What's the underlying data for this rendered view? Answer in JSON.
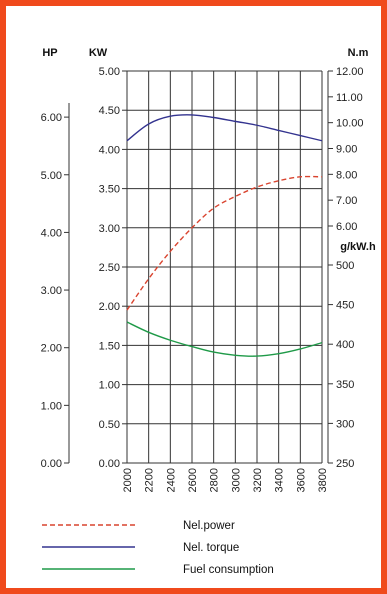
{
  "colors": {
    "border": "#f04a1c",
    "power": "#d9442f",
    "torque": "#33338f",
    "fuel": "#1f9a48",
    "grid": "#333333"
  },
  "chart_data": {
    "type": "line",
    "x": [
      2000,
      2200,
      2400,
      2600,
      2800,
      3000,
      3200,
      3400,
      3600,
      3800
    ],
    "x_tick_labels": [
      "2000",
      "2200",
      "2400",
      "2600",
      "2800",
      "3000",
      "3200",
      "3400",
      "3600",
      "3800"
    ],
    "grid": true,
    "legend_position": "bottom",
    "axes": {
      "hp": {
        "title": "HP",
        "side": "left-outer",
        "range": [
          0,
          6.8
        ],
        "ticks": [
          0,
          1,
          2,
          3,
          4,
          5,
          6
        ],
        "tick_labels": [
          "0.00",
          "1.00",
          "2.00",
          "3.00",
          "4.00",
          "5.00",
          "6.00"
        ]
      },
      "kw": {
        "title": "KW",
        "side": "left-inner",
        "range": [
          0,
          5.0
        ],
        "ticks": [
          0,
          0.5,
          1.0,
          1.5,
          2.0,
          2.5,
          3.0,
          3.5,
          4.0,
          4.5,
          5.0
        ],
        "tick_labels": [
          "0.00",
          "0.50",
          "1.00",
          "1.50",
          "2.00",
          "2.50",
          "3.00",
          "3.50",
          "4.00",
          "4.50",
          "5.00"
        ]
      },
      "nm": {
        "title": "N.m",
        "side": "right-top",
        "range": [
          6.0,
          12.0
        ],
        "ticks": [
          6,
          7,
          8,
          9,
          10,
          11,
          12
        ],
        "tick_labels": [
          "6.00",
          "7.00",
          "8.00",
          "9.00",
          "10.00",
          "11.00",
          "12.00"
        ]
      },
      "gkwh": {
        "title": "g/kW.h",
        "side": "right-bottom",
        "range": [
          250,
          500
        ],
        "ticks": [
          250,
          300,
          350,
          400,
          450,
          500
        ],
        "tick_labels": [
          "250",
          "300",
          "350",
          "400",
          "450",
          "500"
        ]
      }
    },
    "series": [
      {
        "name": "Nel.power",
        "axis": "kw",
        "style": "dashed",
        "values": [
          1.95,
          2.35,
          2.7,
          3.0,
          3.25,
          3.4,
          3.52,
          3.6,
          3.65,
          3.65
        ]
      },
      {
        "name": "Nel. torque",
        "axis": "nm",
        "style": "solid",
        "values": [
          9.3,
          9.95,
          10.25,
          10.3,
          10.2,
          10.05,
          9.9,
          9.7,
          9.5,
          9.3
        ]
      },
      {
        "name": "Fuel consumption",
        "axis": "gkwh",
        "style": "solid",
        "values": [
          428,
          415,
          405,
          397,
          390,
          386,
          385,
          388,
          394,
          402
        ]
      }
    ]
  }
}
